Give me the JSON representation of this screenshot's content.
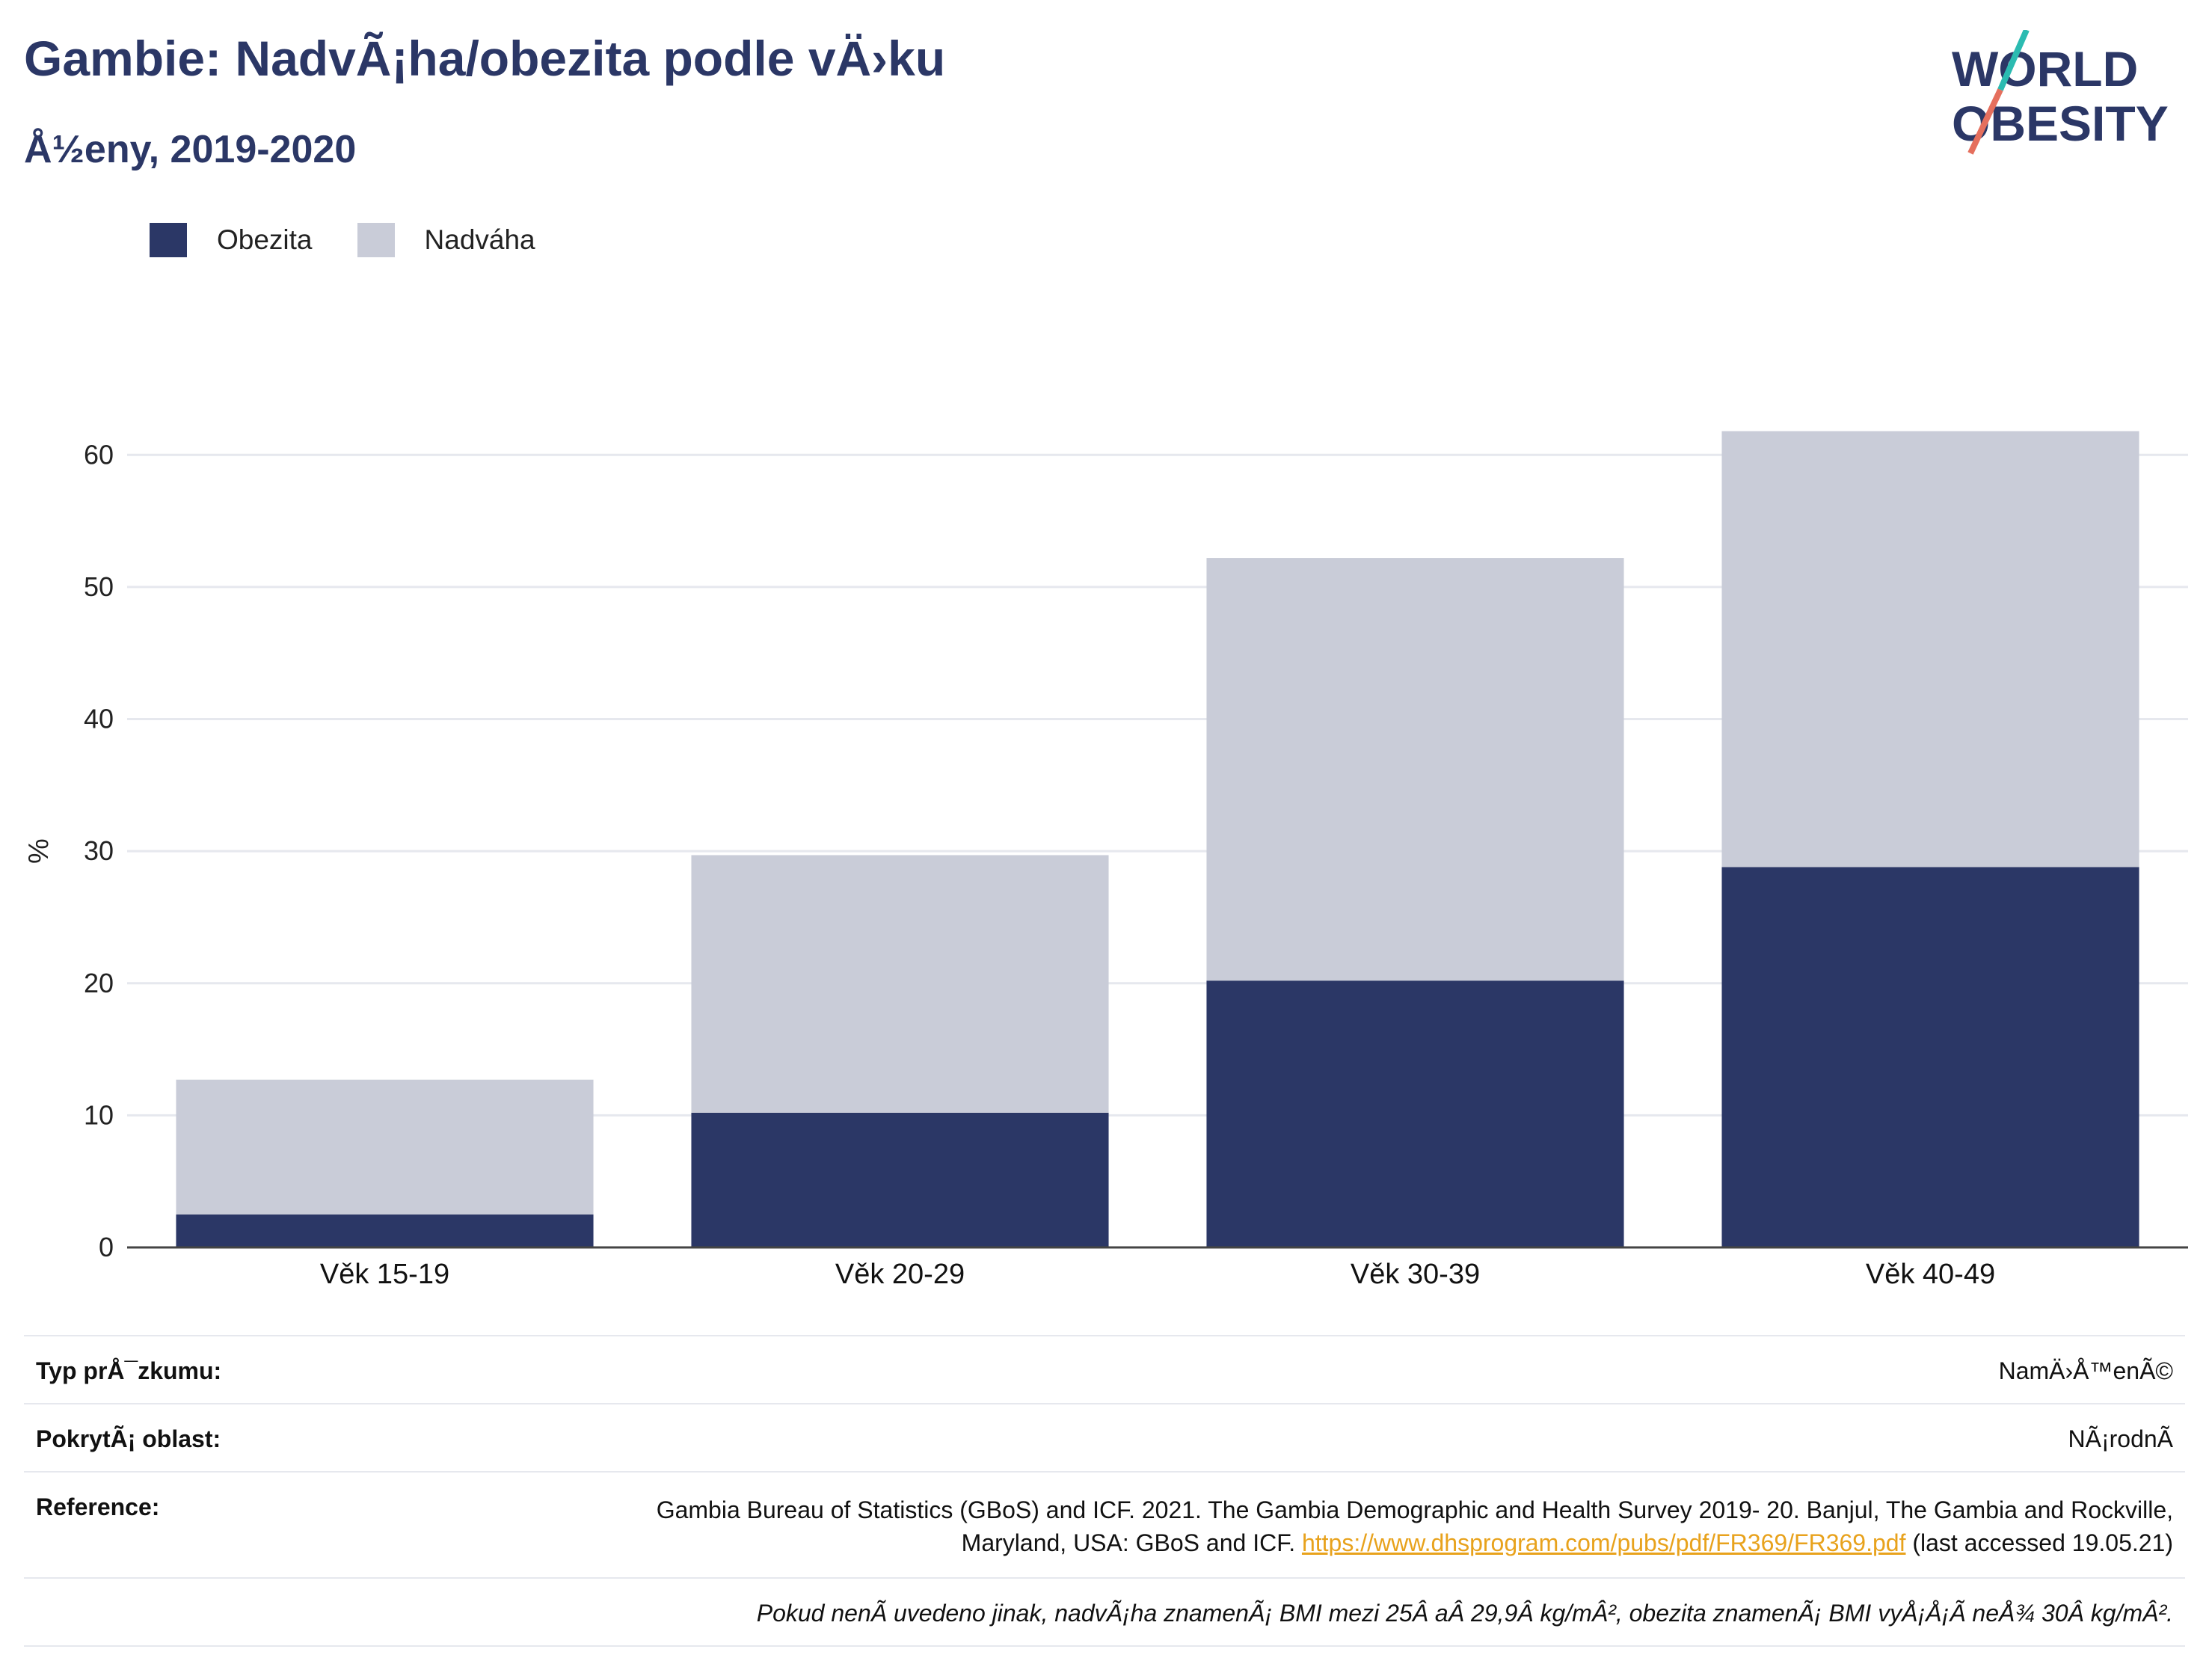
{
  "header": {
    "title": "Gambie: NadvÃ¡ha/obezita podle vÄ›ku",
    "subtitle": "Å½eny, 2019-2020"
  },
  "logo": {
    "line1": "WORLD",
    "line2": "OBESITY"
  },
  "legend": [
    {
      "label": "Obezita",
      "color": "#2b3766"
    },
    {
      "label": "Nadváha",
      "color": "#c9ccd8"
    }
  ],
  "chart_data": {
    "type": "bar",
    "stacked": true,
    "categories": [
      "Věk 15-19",
      "Věk 20-29",
      "Věk 30-39",
      "Věk 40-49"
    ],
    "series": [
      {
        "name": "Obezita",
        "values": [
          2.5,
          10.2,
          20.2,
          28.8
        ],
        "color": "#2b3766"
      },
      {
        "name": "Nadváha",
        "values": [
          10.2,
          19.5,
          32.0,
          33.0
        ],
        "color": "#c9ccd8"
      }
    ],
    "ylabel": "%",
    "yticks": [
      0,
      10,
      20,
      30,
      40,
      50,
      60
    ],
    "ylim": [
      0,
      65
    ],
    "grid": true,
    "legend_position": "top-left"
  },
  "info": {
    "survey_type_label": "Typ prÅ¯zkumu:",
    "survey_type_value": "NamÄ›Å™enÃ©",
    "coverage_label": "PokrytÃ¡ oblast:",
    "coverage_value": "NÃ¡rodnÃ",
    "reference_label": "Reference:",
    "reference_text": "Gambia Bureau of Statistics (GBoS) and ICF. 2021. The Gambia Demographic and Health Survey 2019- 20. Banjul, The Gambia and Rockville, Maryland, USA: GBoS and ICF. ",
    "reference_link": "https://www.dhsprogram.com/pubs/pdf/FR369/FR369.pdf",
    "reference_suffix": " (last accessed 19.05.21)",
    "note": "Pokud nenÃ uvedeno jinak, nadvÃ¡ha znamenÃ¡ BMI mezi 25Â aÂ 29,9Â kg/mÂ², obezita znamenÃ¡ BMI vyÅ¡Å¡Ã neÅ¾ 30Â kg/mÂ²."
  }
}
